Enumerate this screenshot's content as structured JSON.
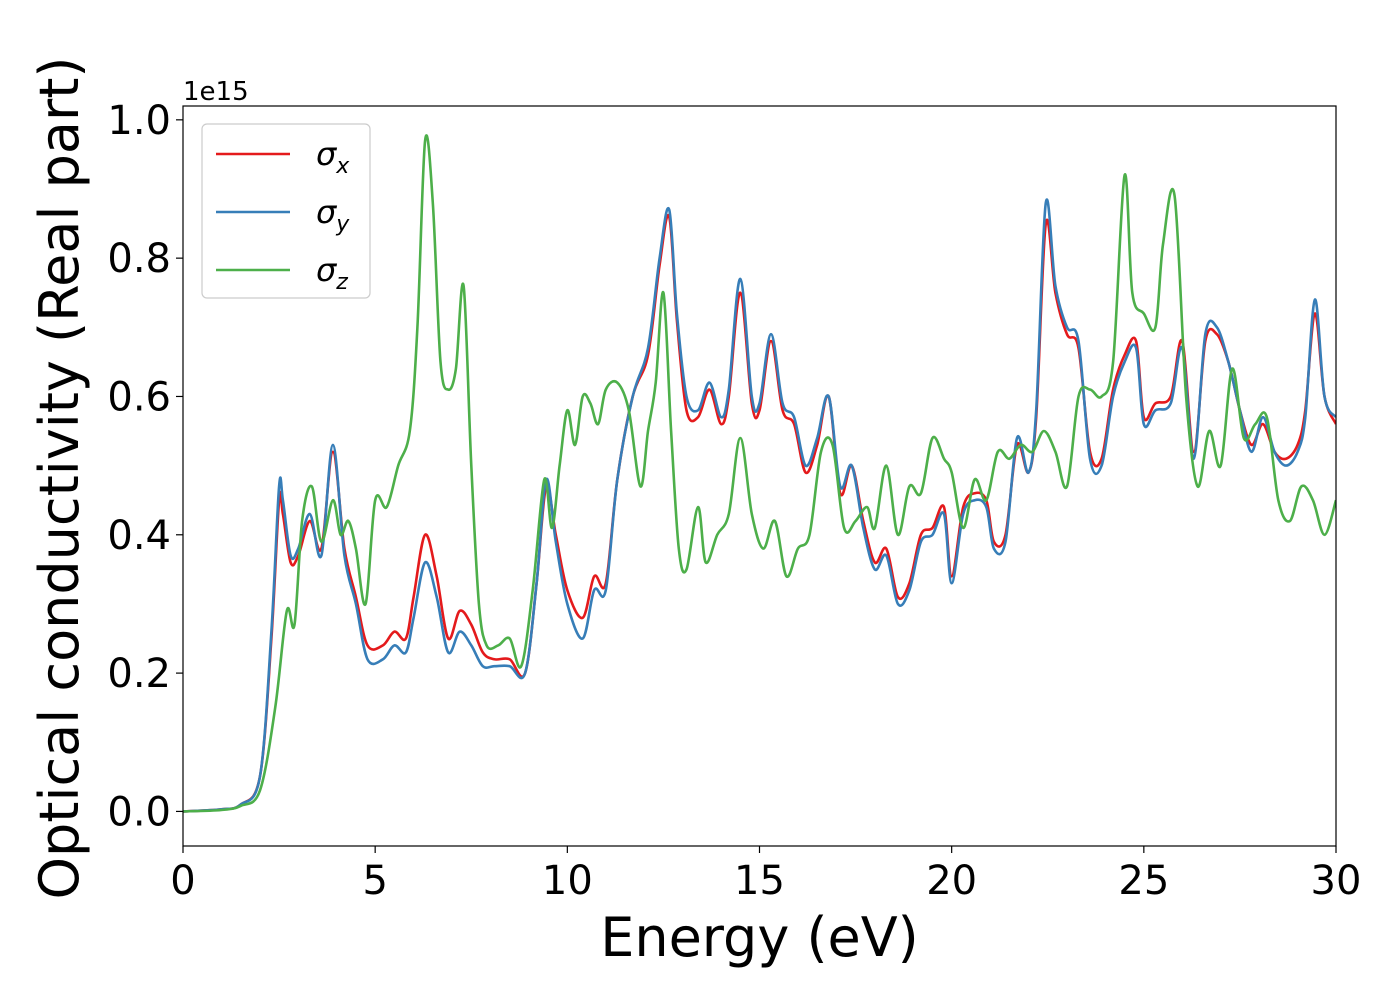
{
  "chart_data": {
    "type": "line",
    "title": "",
    "xlabel": "Energy (eV)",
    "ylabel": "Optical conductivity (Real part)",
    "y_offset_text": "1e15",
    "xlim": [
      0,
      30
    ],
    "ylim": [
      -0.05,
      1.02
    ],
    "x_ticks": [
      0,
      5,
      10,
      15,
      20,
      25,
      30
    ],
    "x_tick_labels": [
      "0",
      "5",
      "10",
      "15",
      "20",
      "25",
      "30"
    ],
    "y_ticks": [
      0.0,
      0.2,
      0.4,
      0.6,
      0.8,
      1.0
    ],
    "y_tick_labels": [
      "0.0",
      "0.2",
      "0.4",
      "0.6",
      "0.8",
      "1.0"
    ],
    "grid": false,
    "legend_position": "top-left",
    "series": [
      {
        "name": "σx",
        "symbol": "σ",
        "subscript": "x",
        "color": "#e41a1c",
        "x": [
          0,
          1,
          1.5,
          2.0,
          2.3,
          2.5,
          2.6,
          2.8,
          3.0,
          3.3,
          3.6,
          3.9,
          4.2,
          4.5,
          4.8,
          5.2,
          5.5,
          5.8,
          6.0,
          6.3,
          6.6,
          6.9,
          7.2,
          7.5,
          7.8,
          8.1,
          8.5,
          8.9,
          9.2,
          9.45,
          9.7,
          10.0,
          10.4,
          10.7,
          11.0,
          11.3,
          11.7,
          12.1,
          12.4,
          12.65,
          12.85,
          13.1,
          13.4,
          13.7,
          14.0,
          14.2,
          14.5,
          14.8,
          15.0,
          15.3,
          15.6,
          15.9,
          16.2,
          16.5,
          16.8,
          17.1,
          17.4,
          17.7,
          18.0,
          18.3,
          18.6,
          18.9,
          19.2,
          19.5,
          19.8,
          20.0,
          20.3,
          20.6,
          20.9,
          21.1,
          21.4,
          21.7,
          22.0,
          22.2,
          22.45,
          22.7,
          23.0,
          23.3,
          23.6,
          23.9,
          24.2,
          24.5,
          24.8,
          25.0,
          25.3,
          25.7,
          26.0,
          26.3,
          26.6,
          26.9,
          27.2,
          27.5,
          27.8,
          28.1,
          28.4,
          28.7,
          29.0,
          29.2,
          29.45,
          29.7,
          30.0
        ],
        "y": [
          0.0,
          0.003,
          0.01,
          0.05,
          0.25,
          0.45,
          0.43,
          0.36,
          0.37,
          0.42,
          0.38,
          0.52,
          0.38,
          0.31,
          0.24,
          0.24,
          0.26,
          0.25,
          0.31,
          0.4,
          0.34,
          0.25,
          0.29,
          0.27,
          0.23,
          0.22,
          0.22,
          0.2,
          0.33,
          0.47,
          0.4,
          0.32,
          0.28,
          0.34,
          0.33,
          0.48,
          0.6,
          0.66,
          0.79,
          0.86,
          0.71,
          0.58,
          0.57,
          0.61,
          0.56,
          0.6,
          0.75,
          0.59,
          0.58,
          0.68,
          0.58,
          0.56,
          0.49,
          0.53,
          0.6,
          0.46,
          0.5,
          0.42,
          0.36,
          0.38,
          0.31,
          0.33,
          0.4,
          0.41,
          0.44,
          0.34,
          0.44,
          0.46,
          0.45,
          0.39,
          0.4,
          0.53,
          0.49,
          0.57,
          0.85,
          0.75,
          0.69,
          0.67,
          0.52,
          0.51,
          0.61,
          0.66,
          0.68,
          0.57,
          0.59,
          0.6,
          0.68,
          0.52,
          0.68,
          0.69,
          0.65,
          0.58,
          0.53,
          0.56,
          0.52,
          0.51,
          0.53,
          0.58,
          0.72,
          0.6,
          0.56
        ]
      },
      {
        "name": "σy",
        "symbol": "σ",
        "subscript": "y",
        "color": "#377eb8",
        "x": [
          0,
          1,
          1.5,
          2.0,
          2.3,
          2.5,
          2.6,
          2.8,
          3.0,
          3.3,
          3.6,
          3.9,
          4.2,
          4.5,
          4.8,
          5.2,
          5.5,
          5.8,
          6.0,
          6.3,
          6.6,
          6.9,
          7.2,
          7.5,
          7.8,
          8.1,
          8.5,
          8.9,
          9.2,
          9.45,
          9.7,
          10.0,
          10.4,
          10.7,
          11.0,
          11.3,
          11.7,
          12.1,
          12.4,
          12.65,
          12.85,
          13.1,
          13.4,
          13.7,
          14.0,
          14.2,
          14.5,
          14.8,
          15.0,
          15.3,
          15.6,
          15.9,
          16.2,
          16.5,
          16.8,
          17.1,
          17.4,
          17.7,
          18.0,
          18.3,
          18.6,
          18.9,
          19.2,
          19.5,
          19.8,
          20.0,
          20.3,
          20.6,
          20.9,
          21.1,
          21.4,
          21.7,
          22.0,
          22.2,
          22.45,
          22.7,
          23.0,
          23.3,
          23.6,
          23.9,
          24.2,
          24.5,
          24.8,
          25.0,
          25.3,
          25.7,
          26.0,
          26.3,
          26.6,
          26.9,
          27.2,
          27.5,
          27.8,
          28.1,
          28.4,
          28.7,
          29.0,
          29.2,
          29.45,
          29.7,
          30.0
        ],
        "y": [
          0.0,
          0.003,
          0.01,
          0.05,
          0.26,
          0.47,
          0.45,
          0.37,
          0.38,
          0.43,
          0.37,
          0.53,
          0.37,
          0.3,
          0.22,
          0.22,
          0.24,
          0.23,
          0.28,
          0.36,
          0.31,
          0.23,
          0.26,
          0.24,
          0.21,
          0.21,
          0.21,
          0.2,
          0.33,
          0.48,
          0.39,
          0.3,
          0.25,
          0.32,
          0.32,
          0.48,
          0.6,
          0.67,
          0.8,
          0.87,
          0.72,
          0.6,
          0.58,
          0.62,
          0.57,
          0.61,
          0.77,
          0.6,
          0.59,
          0.69,
          0.59,
          0.57,
          0.5,
          0.54,
          0.6,
          0.47,
          0.5,
          0.41,
          0.35,
          0.37,
          0.3,
          0.32,
          0.39,
          0.4,
          0.43,
          0.33,
          0.43,
          0.45,
          0.44,
          0.38,
          0.39,
          0.54,
          0.49,
          0.58,
          0.88,
          0.76,
          0.7,
          0.68,
          0.51,
          0.5,
          0.6,
          0.65,
          0.67,
          0.56,
          0.58,
          0.59,
          0.67,
          0.51,
          0.69,
          0.7,
          0.65,
          0.58,
          0.52,
          0.57,
          0.52,
          0.5,
          0.52,
          0.57,
          0.74,
          0.6,
          0.57
        ]
      },
      {
        "name": "σz",
        "symbol": "σ",
        "subscript": "z",
        "color": "#4daf4a",
        "x": [
          0,
          1,
          1.5,
          2.0,
          2.4,
          2.7,
          2.9,
          3.1,
          3.35,
          3.6,
          3.9,
          4.1,
          4.3,
          4.5,
          4.75,
          5.0,
          5.3,
          5.6,
          5.9,
          6.1,
          6.3,
          6.5,
          6.7,
          6.9,
          7.1,
          7.3,
          7.5,
          7.7,
          7.9,
          8.2,
          8.5,
          8.8,
          9.1,
          9.4,
          9.6,
          9.8,
          10.0,
          10.2,
          10.4,
          10.6,
          10.8,
          11.0,
          11.3,
          11.6,
          11.9,
          12.1,
          12.3,
          12.5,
          12.7,
          12.9,
          13.1,
          13.4,
          13.6,
          13.9,
          14.2,
          14.5,
          14.8,
          15.1,
          15.4,
          15.7,
          16.0,
          16.3,
          16.6,
          16.9,
          17.2,
          17.5,
          17.8,
          18.0,
          18.3,
          18.6,
          18.9,
          19.2,
          19.5,
          19.8,
          20.0,
          20.3,
          20.6,
          20.9,
          21.2,
          21.5,
          21.8,
          22.1,
          22.4,
          22.7,
          23.0,
          23.3,
          23.6,
          23.9,
          24.2,
          24.5,
          24.7,
          25.0,
          25.3,
          25.5,
          25.8,
          26.1,
          26.4,
          26.7,
          27.0,
          27.3,
          27.6,
          27.9,
          28.2,
          28.5,
          28.8,
          29.1,
          29.4,
          29.7,
          30.0
        ],
        "y": [
          0.0,
          0.002,
          0.008,
          0.03,
          0.15,
          0.29,
          0.27,
          0.42,
          0.47,
          0.39,
          0.45,
          0.4,
          0.42,
          0.38,
          0.3,
          0.45,
          0.44,
          0.5,
          0.55,
          0.7,
          0.97,
          0.88,
          0.65,
          0.61,
          0.64,
          0.76,
          0.5,
          0.3,
          0.24,
          0.24,
          0.25,
          0.21,
          0.32,
          0.48,
          0.41,
          0.5,
          0.58,
          0.53,
          0.6,
          0.59,
          0.56,
          0.61,
          0.62,
          0.58,
          0.47,
          0.55,
          0.62,
          0.75,
          0.55,
          0.38,
          0.35,
          0.44,
          0.36,
          0.4,
          0.43,
          0.54,
          0.43,
          0.38,
          0.42,
          0.34,
          0.38,
          0.4,
          0.52,
          0.53,
          0.41,
          0.42,
          0.44,
          0.41,
          0.5,
          0.4,
          0.47,
          0.46,
          0.54,
          0.51,
          0.49,
          0.41,
          0.48,
          0.45,
          0.52,
          0.51,
          0.53,
          0.52,
          0.55,
          0.52,
          0.47,
          0.6,
          0.61,
          0.6,
          0.65,
          0.92,
          0.75,
          0.72,
          0.7,
          0.82,
          0.89,
          0.6,
          0.47,
          0.55,
          0.5,
          0.64,
          0.54,
          0.56,
          0.57,
          0.45,
          0.42,
          0.47,
          0.45,
          0.4,
          0.45
        ]
      }
    ]
  }
}
